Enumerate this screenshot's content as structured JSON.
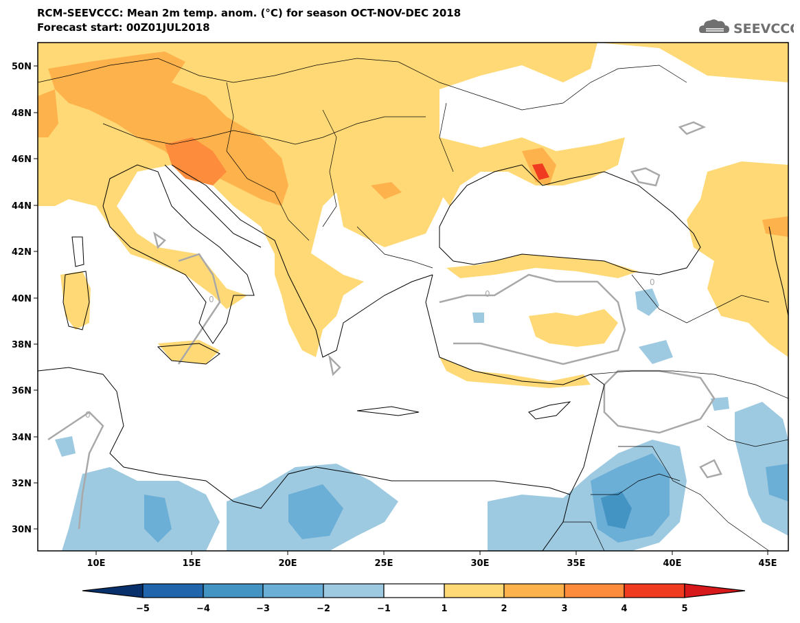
{
  "header": {
    "title": "RCM-SEEVCCC: Mean 2m temp. anom. (°C) for season OCT-NOV-DEC 2018",
    "subtitle": "Forecast start: 00Z01JUL2018",
    "logo_text": "SEEVCCC",
    "logo_icon": "cloud-icon"
  },
  "map": {
    "lon_labels": [
      "10E",
      "15E",
      "20E",
      "25E",
      "30E",
      "35E",
      "40E",
      "45E"
    ],
    "lat_labels": [
      "50N",
      "48N",
      "46N",
      "44N",
      "42N",
      "40N",
      "38N",
      "36N",
      "34N",
      "32N",
      "30N"
    ],
    "contour_label": "0"
  },
  "colorbar": {
    "labels": [
      "−5",
      "−4",
      "−3",
      "−2",
      "−1",
      "1",
      "2",
      "3",
      "4",
      "5"
    ],
    "colors": [
      "#08306b",
      "#2166ac",
      "#4393c3",
      "#6baed6",
      "#9ecae1",
      "#ffffff",
      "#fed976",
      "#feb24c",
      "#fd8d3c",
      "#f03b20",
      "#d7191c"
    ]
  }
}
